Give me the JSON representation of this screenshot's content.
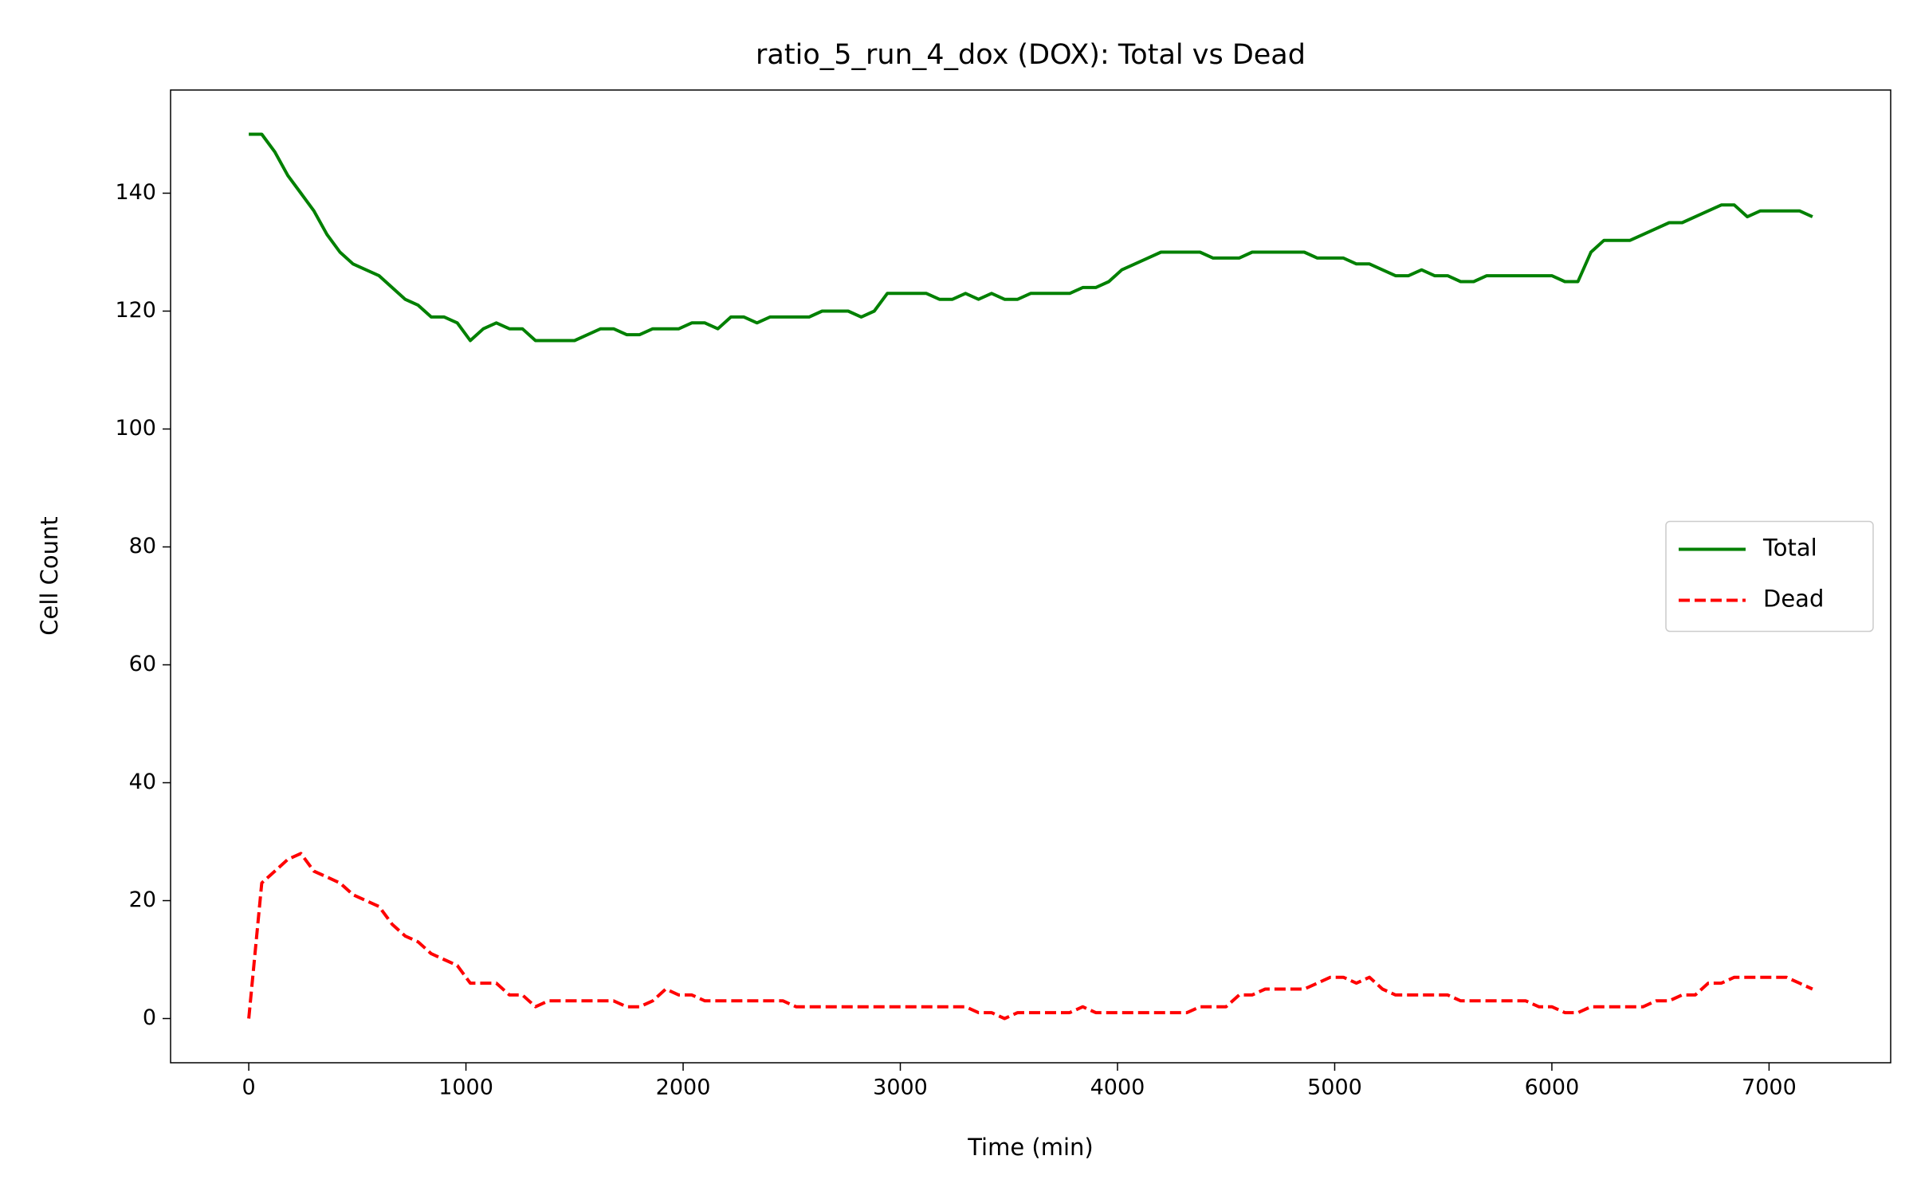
{
  "chart_data": {
    "type": "line",
    "title": "ratio_5_run_4_dox (DOX): Total vs Dead",
    "x_label": "Time (min)",
    "y_label": "Cell Count",
    "x": [
      0,
      60,
      120,
      180,
      240,
      300,
      360,
      420,
      480,
      540,
      600,
      660,
      720,
      780,
      840,
      900,
      960,
      1020,
      1080,
      1140,
      1200,
      1260,
      1320,
      1380,
      1440,
      1500,
      1560,
      1620,
      1680,
      1740,
      1800,
      1860,
      1920,
      1980,
      2040,
      2100,
      2160,
      2220,
      2280,
      2340,
      2400,
      2460,
      2520,
      2580,
      2640,
      2700,
      2760,
      2820,
      2880,
      2940,
      3000,
      3060,
      3120,
      3180,
      3240,
      3300,
      3360,
      3420,
      3480,
      3540,
      3600,
      3660,
      3720,
      3780,
      3840,
      3900,
      3960,
      4020,
      4080,
      4140,
      4200,
      4260,
      4320,
      4380,
      4440,
      4500,
      4560,
      4620,
      4680,
      4740,
      4800,
      4860,
      4920,
      4980,
      5040,
      5100,
      5160,
      5220,
      5280,
      5340,
      5400,
      5460,
      5520,
      5580,
      5640,
      5700,
      5760,
      5820,
      5880,
      5940,
      6000,
      6060,
      6120,
      6180,
      6240,
      6300,
      6360,
      6420,
      6480,
      6540,
      6600,
      6660,
      6720,
      6780,
      6840,
      6900,
      6960,
      7020,
      7080,
      7140,
      7200
    ],
    "series": [
      {
        "name": "Total",
        "color": "#008000",
        "linestyle": "solid",
        "values": [
          150,
          150,
          147,
          143,
          140,
          137,
          133,
          130,
          128,
          127,
          126,
          124,
          122,
          121,
          119,
          119,
          118,
          115,
          117,
          118,
          117,
          117,
          115,
          115,
          115,
          115,
          116,
          117,
          117,
          116,
          116,
          117,
          117,
          117,
          118,
          118,
          117,
          119,
          119,
          118,
          119,
          119,
          119,
          119,
          120,
          120,
          120,
          119,
          120,
          123,
          123,
          123,
          123,
          122,
          122,
          123,
          122,
          123,
          122,
          122,
          123,
          123,
          123,
          123,
          124,
          124,
          125,
          127,
          128,
          129,
          130,
          130,
          130,
          130,
          129,
          129,
          129,
          130,
          130,
          130,
          130,
          130,
          129,
          129,
          129,
          128,
          128,
          127,
          126,
          126,
          127,
          126,
          126,
          125,
          125,
          126,
          126,
          126,
          126,
          126,
          126,
          125,
          125,
          130,
          132,
          132,
          132,
          133,
          134,
          135,
          135,
          136,
          137,
          138,
          138,
          136,
          137,
          137,
          137,
          137,
          136
        ]
      },
      {
        "name": "Dead",
        "color": "#ff0000",
        "linestyle": "dashed",
        "values": [
          0,
          23,
          25,
          27,
          28,
          25,
          24,
          23,
          21,
          20,
          19,
          16,
          14,
          13,
          11,
          10,
          9,
          6,
          6,
          6,
          4,
          4,
          2,
          3,
          3,
          3,
          3,
          3,
          3,
          2,
          2,
          3,
          5,
          4,
          4,
          3,
          3,
          3,
          3,
          3,
          3,
          3,
          2,
          2,
          2,
          2,
          2,
          2,
          2,
          2,
          2,
          2,
          2,
          2,
          2,
          2,
          1,
          1,
          0,
          1,
          1,
          1,
          1,
          1,
          2,
          1,
          1,
          1,
          1,
          1,
          1,
          1,
          1,
          2,
          2,
          2,
          4,
          4,
          5,
          5,
          5,
          5,
          6,
          7,
          7,
          6,
          7,
          5,
          4,
          4,
          4,
          4,
          4,
          3,
          3,
          3,
          3,
          3,
          3,
          2,
          2,
          1,
          1,
          2,
          2,
          2,
          2,
          2,
          3,
          3,
          4,
          4,
          6,
          6,
          7,
          7,
          7,
          7,
          7,
          6,
          5
        ]
      }
    ],
    "xlim": [
      -360,
      7560
    ],
    "xticks": [
      0,
      1000,
      2000,
      3000,
      4000,
      5000,
      6000,
      7000
    ],
    "ylim": [
      -7.5,
      157.5
    ],
    "yticks": [
      0,
      20,
      40,
      60,
      80,
      100,
      120,
      140
    ],
    "grid": false,
    "legend": "center right"
  }
}
